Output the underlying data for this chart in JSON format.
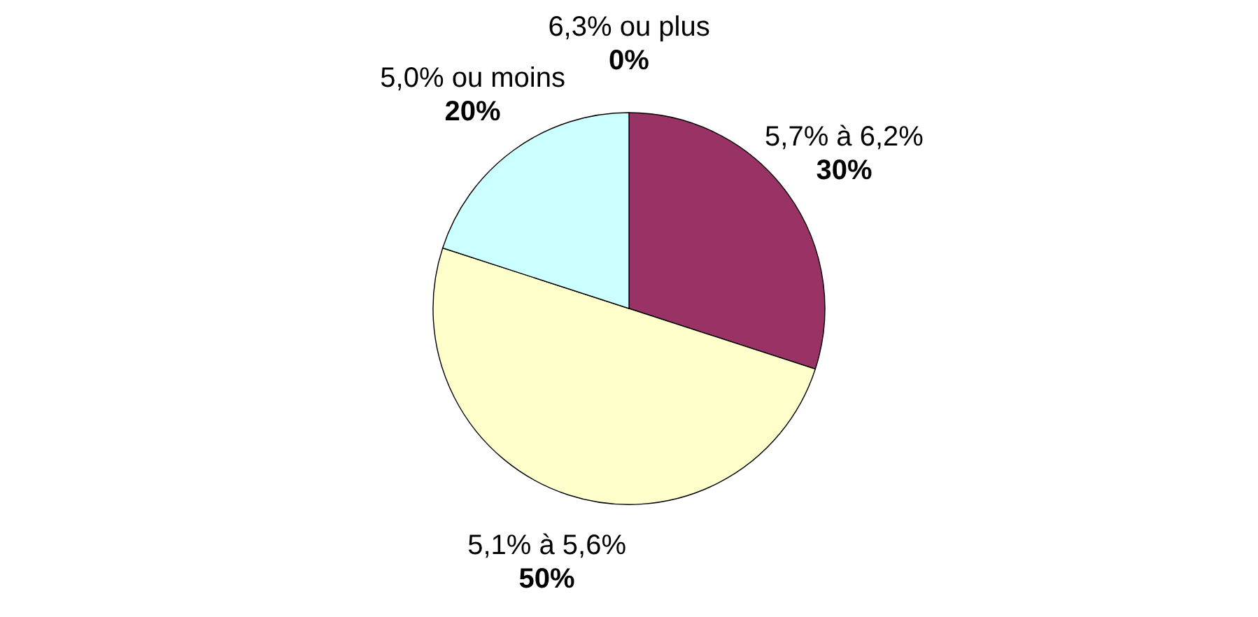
{
  "chart_data": {
    "type": "pie",
    "categories": [
      "6,3% ou plus",
      "5,7% à 6,2%",
      "5,1% à 5,6%",
      "5,0% ou moins"
    ],
    "values": [
      0,
      30,
      50,
      20
    ],
    "colors": [
      "#ffffff",
      "#993366",
      "#ffffcc",
      "#ccffff"
    ],
    "value_labels": [
      "0%",
      "30%",
      "50%",
      "20%"
    ]
  }
}
